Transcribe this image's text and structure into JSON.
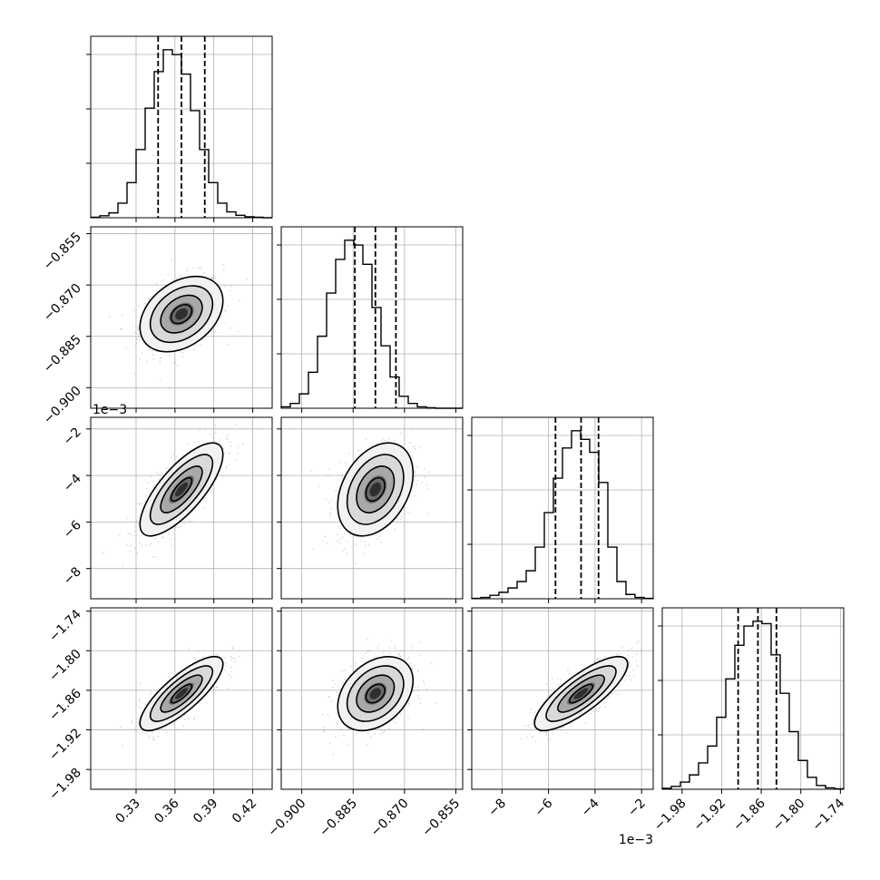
{
  "chart_data": {
    "type": "corner",
    "parameters": [
      {
        "range": [
          0.295,
          0.435
        ],
        "ticks": [
          0.33,
          0.36,
          0.39,
          0.42
        ],
        "tick_labels": [
          "0.33",
          "0.36",
          "0.39",
          "0.42"
        ],
        "offset_label": "",
        "mean": 0.365,
        "std": 0.016,
        "quantiles": [
          0.347,
          0.365,
          0.383
        ],
        "hist_bins": [
          0.295,
          0.302,
          0.309,
          0.316,
          0.323,
          0.33,
          0.337,
          0.344,
          0.351,
          0.358,
          0.365,
          0.372,
          0.379,
          0.386,
          0.393,
          0.4,
          0.407,
          0.414,
          0.421,
          0.428,
          0.435
        ],
        "hist_counts": [
          1,
          4,
          10,
          30,
          72,
          140,
          225,
          300,
          345,
          335,
          295,
          220,
          140,
          72,
          30,
          12,
          5,
          2,
          1,
          0
        ]
      },
      {
        "range": [
          -0.906,
          -0.853
        ],
        "ticks": [
          -0.9,
          -0.885,
          -0.87,
          -0.855
        ],
        "tick_labels": [
          "−0.900",
          "−0.885",
          "−0.870",
          "−0.855"
        ],
        "offset_label": "",
        "mean": -0.8785,
        "std": 0.0055,
        "quantiles": [
          -0.8845,
          -0.8785,
          -0.8725
        ],
        "hist_bins": [
          -0.906,
          -0.90335,
          -0.9007,
          -0.89805,
          -0.8954,
          -0.89275,
          -0.8901,
          -0.88745,
          -0.8848,
          -0.88215,
          -0.8795,
          -0.87685,
          -0.8742,
          -0.87155,
          -0.8689,
          -0.86625,
          -0.8636,
          -0.86095,
          -0.8583,
          -0.85565,
          -0.853
        ],
        "hist_counts": [
          3,
          10,
          30,
          75,
          150,
          240,
          310,
          350,
          340,
          300,
          210,
          130,
          65,
          25,
          10,
          3,
          1,
          0,
          0,
          0
        ]
      },
      {
        "range": [
          -9.3,
          -1.5
        ],
        "ticks": [
          -8,
          -6,
          -4,
          -2
        ],
        "tick_labels": [
          "−8",
          "−6",
          "−4",
          "−2"
        ],
        "offset_label": "1e−3",
        "mean": -4.6,
        "std": 1.0,
        "quantiles": [
          -5.7,
          -4.6,
          -3.85
        ],
        "hist_bins": [
          -9.3,
          -8.91,
          -8.52,
          -8.13,
          -7.74,
          -7.35,
          -6.96,
          -6.57,
          -6.18,
          -5.79,
          -5.4,
          -5.01,
          -4.62,
          -4.23,
          -3.84,
          -3.45,
          -3.06,
          -2.67,
          -2.28,
          -1.89,
          -1.5
        ],
        "hist_counts": [
          1,
          3,
          8,
          15,
          25,
          40,
          65,
          120,
          200,
          280,
          350,
          390,
          370,
          340,
          270,
          120,
          40,
          10,
          3,
          1
        ]
      },
      {
        "range": [
          -2.01,
          -1.735
        ],
        "ticks": [
          -1.98,
          -1.92,
          -1.86,
          -1.8,
          -1.74
        ],
        "tick_labels": [
          "−1.98",
          "−1.92",
          "−1.86",
          "−1.80",
          "−1.74"
        ],
        "offset_label": "",
        "mean": -1.865,
        "std": 0.028,
        "quantiles": [
          -1.895,
          -1.865,
          -1.837
        ],
        "hist_bins": [
          -2.01,
          -1.99625,
          -1.9825,
          -1.96875,
          -1.955,
          -1.94125,
          -1.9275,
          -1.91375,
          -1.9,
          -1.88625,
          -1.8725,
          -1.85875,
          -1.845,
          -1.83125,
          -1.8175,
          -1.80375,
          -1.79,
          -1.77625,
          -1.7625,
          -1.74875,
          -1.735
        ],
        "hist_counts": [
          2,
          6,
          15,
          30,
          55,
          90,
          150,
          230,
          300,
          340,
          350,
          345,
          280,
          200,
          120,
          60,
          25,
          8,
          3,
          1
        ]
      }
    ],
    "correlations": {
      "0-1": 0.35,
      "0-2": 0.75,
      "0-3": 0.8,
      "1-2": 0.35,
      "1-3": 0.35,
      "2-3": 0.8
    },
    "contour_levels_sigma": [
      0.5,
      1.0,
      1.5,
      2.0
    ],
    "grid": true,
    "quantile_lines": "dashed"
  }
}
